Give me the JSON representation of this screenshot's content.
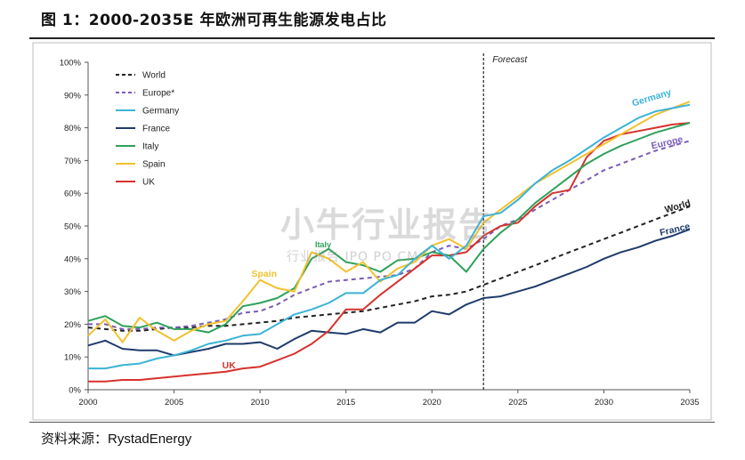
{
  "header": {
    "title": "图 1：2000-2035E 年欧洲可再生能源发电占比"
  },
  "footer": {
    "source_label": "资料来源：",
    "source_name": "RystadEnergy"
  },
  "watermark": {
    "main": "小牛行业报告",
    "sub": "行业报告 IPO PO CM"
  },
  "chart_data": {
    "type": "line",
    "xlim": [
      2000,
      2035
    ],
    "ylim": [
      0,
      100
    ],
    "x_ticks": [
      2000,
      2005,
      2010,
      2015,
      2020,
      2025,
      2030,
      2035
    ],
    "y_ticks": [
      0,
      10,
      20,
      30,
      40,
      50,
      60,
      70,
      80,
      90,
      100
    ],
    "y_tick_format": "%",
    "grid": false,
    "legend_position": "top-left",
    "forecast": {
      "x": 2023,
      "label": "Forecast"
    },
    "series": [
      {
        "name": "World",
        "color": "#222222",
        "dash": "5,4",
        "end_label": "World",
        "x": [
          2000,
          2001,
          2002,
          2003,
          2004,
          2005,
          2006,
          2007,
          2008,
          2009,
          2010,
          2011,
          2012,
          2013,
          2014,
          2015,
          2016,
          2017,
          2018,
          2019,
          2020,
          2021,
          2022,
          2023,
          2024,
          2025,
          2026,
          2027,
          2028,
          2029,
          2030,
          2031,
          2032,
          2033,
          2034,
          2035
        ],
        "y": [
          19,
          18.5,
          18,
          18,
          18.5,
          19,
          19,
          19.5,
          19.5,
          20,
          20.5,
          21,
          22,
          22.5,
          23,
          23.5,
          24,
          25,
          26,
          27,
          28.5,
          29,
          30,
          32,
          34,
          36,
          38,
          40,
          42,
          44,
          46,
          48,
          50,
          52,
          54,
          56
        ]
      },
      {
        "name": "Europe*",
        "color": "#7a5cb8",
        "dash": "5,4",
        "end_label": "Europe",
        "x": [
          2000,
          2001,
          2002,
          2003,
          2004,
          2005,
          2006,
          2007,
          2008,
          2009,
          2010,
          2011,
          2012,
          2013,
          2014,
          2015,
          2016,
          2017,
          2018,
          2019,
          2020,
          2021,
          2022,
          2023,
          2024,
          2025,
          2026,
          2027,
          2028,
          2029,
          2030,
          2031,
          2032,
          2033,
          2034,
          2035
        ],
        "y": [
          20,
          20,
          18.5,
          18.5,
          19,
          19,
          19.5,
          20.5,
          21.5,
          23.5,
          24,
          26,
          29,
          31,
          33,
          33.5,
          34,
          34.5,
          35,
          37,
          42,
          44,
          43,
          46,
          50,
          52,
          55,
          58,
          61,
          64,
          67,
          69,
          71,
          73,
          74.5,
          76
        ]
      },
      {
        "name": "Germany",
        "color": "#3bb3d6",
        "dash": "",
        "end_label": "Germany",
        "x": [
          2000,
          2001,
          2002,
          2003,
          2004,
          2005,
          2006,
          2007,
          2008,
          2009,
          2010,
          2011,
          2012,
          2013,
          2014,
          2015,
          2016,
          2017,
          2018,
          2019,
          2020,
          2021,
          2022,
          2023,
          2024,
          2025,
          2026,
          2027,
          2028,
          2029,
          2030,
          2031,
          2032,
          2033,
          2034,
          2035
        ],
        "y": [
          6.5,
          6.5,
          7.5,
          8,
          9.5,
          10.5,
          12,
          14,
          15,
          16.5,
          17,
          20,
          23,
          24.5,
          26.5,
          29.5,
          29.5,
          33.5,
          35,
          40,
          44,
          40,
          44,
          53,
          54,
          58,
          63,
          67,
          70,
          73.5,
          77,
          80,
          83,
          85,
          86,
          87
        ]
      },
      {
        "name": "France",
        "color": "#1f3b6b",
        "dash": "",
        "end_label": "France",
        "x": [
          2000,
          2001,
          2002,
          2003,
          2004,
          2005,
          2006,
          2007,
          2008,
          2009,
          2010,
          2011,
          2012,
          2013,
          2014,
          2015,
          2016,
          2017,
          2018,
          2019,
          2020,
          2021,
          2022,
          2023,
          2024,
          2025,
          2026,
          2027,
          2028,
          2029,
          2030,
          2031,
          2032,
          2033,
          2034,
          2035
        ],
        "y": [
          13.5,
          15,
          12.5,
          12,
          12,
          10.5,
          11.5,
          12.5,
          14,
          14,
          14.5,
          12.5,
          15.5,
          18,
          17.5,
          17,
          18.5,
          17.5,
          20.5,
          20.5,
          24,
          23,
          26,
          28,
          28.5,
          30,
          31.5,
          33.5,
          35.5,
          37.5,
          40,
          42,
          43.5,
          45.5,
          47,
          49
        ]
      },
      {
        "name": "Italy",
        "color": "#2ea15a",
        "dash": "",
        "end_label": "Italy",
        "x": [
          2000,
          2001,
          2002,
          2003,
          2004,
          2005,
          2006,
          2007,
          2008,
          2009,
          2010,
          2011,
          2012,
          2013,
          2014,
          2015,
          2016,
          2017,
          2018,
          2019,
          2020,
          2021,
          2022,
          2023,
          2024,
          2025,
          2026,
          2027,
          2028,
          2029,
          2030,
          2031,
          2032,
          2033,
          2034,
          2035
        ],
        "y": [
          21,
          22.5,
          19.5,
          19,
          20.5,
          18.5,
          18.5,
          17.5,
          20,
          25.5,
          26.5,
          28,
          31,
          40,
          43,
          39,
          38,
          36,
          39.5,
          40,
          42,
          41,
          36,
          43,
          48,
          52,
          57,
          61,
          65,
          69,
          72,
          74.5,
          76.5,
          78.5,
          80,
          81.5
        ]
      },
      {
        "name": "Spain",
        "color": "#f2c12e",
        "dash": "",
        "end_label": "Spain",
        "x": [
          2000,
          2001,
          2002,
          2003,
          2004,
          2005,
          2006,
          2007,
          2008,
          2009,
          2010,
          2011,
          2012,
          2013,
          2014,
          2015,
          2016,
          2017,
          2018,
          2019,
          2020,
          2021,
          2022,
          2023,
          2024,
          2025,
          2026,
          2027,
          2028,
          2029,
          2030,
          2031,
          2032,
          2033,
          2034,
          2035
        ],
        "y": [
          16.5,
          21.5,
          14.5,
          22,
          18,
          15,
          18,
          20,
          21,
          27,
          33.5,
          31,
          30,
          42,
          40,
          36,
          39,
          33,
          37,
          39,
          44,
          46,
          43,
          51,
          55,
          59,
          63,
          66,
          69,
          72,
          75,
          78,
          81,
          84,
          86,
          88
        ]
      },
      {
        "name": "UK",
        "color": "#d6322e",
        "dash": "",
        "end_label": "UK",
        "x": [
          2000,
          2001,
          2002,
          2003,
          2004,
          2005,
          2006,
          2007,
          2008,
          2009,
          2010,
          2011,
          2012,
          2013,
          2014,
          2015,
          2016,
          2017,
          2018,
          2019,
          2020,
          2021,
          2022,
          2023,
          2024,
          2025,
          2026,
          2027,
          2028,
          2029,
          2030,
          2031,
          2032,
          2033,
          2034,
          2035
        ],
        "y": [
          2.5,
          2.5,
          3,
          3,
          3.5,
          4,
          4.5,
          5,
          5.5,
          6.5,
          7,
          9,
          11,
          14,
          18,
          24.5,
          24.5,
          29,
          33,
          37,
          41,
          41,
          42,
          47,
          50,
          51,
          56,
          60,
          61,
          71,
          76,
          78,
          79,
          80,
          81,
          81.5
        ]
      }
    ]
  }
}
